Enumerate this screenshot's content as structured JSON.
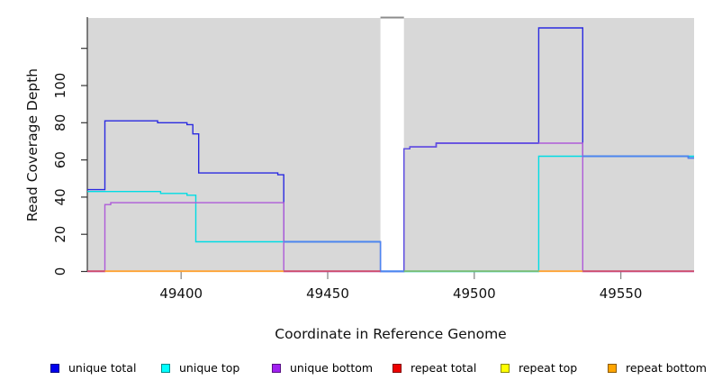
{
  "figure": {
    "bg": "#ffffff",
    "plot_bg": "#D8D8D8",
    "gap_bridge_color": "#8C8C8C"
  },
  "titles": {
    "x": "Coordinate in Reference Genome",
    "y": "Read Coverage Depth"
  },
  "chart_data": {
    "type": "line",
    "title": "",
    "xlabel": "Coordinate in Reference Genome",
    "ylabel": "Read Coverage Depth",
    "xlim": [
      49368,
      49575
    ],
    "ylim": [
      0,
      137
    ],
    "grid": false,
    "legend_position": "bottom",
    "panels_x": [
      [
        49368,
        49468
      ],
      [
        49476,
        49575
      ]
    ],
    "panel_gap_x": [
      49468,
      49476
    ],
    "x_ticks": [
      49400,
      49450,
      49500,
      49550
    ],
    "y_ticks": [
      {
        "v": 0,
        "label": "0"
      },
      {
        "v": 20,
        "label": "20"
      },
      {
        "v": 40,
        "label": "40"
      },
      {
        "v": 60,
        "label": "60"
      },
      {
        "v": 80,
        "label": "80"
      },
      {
        "v": 100,
        "label": "100"
      },
      {
        "v": 120,
        "label": ""
      }
    ],
    "series": [
      {
        "name": "unique top",
        "color": "#00DCE4",
        "points_segments": [
          [
            [
              49368,
              43
            ],
            [
              49393,
              42
            ],
            [
              49402,
              41
            ],
            [
              49405,
              16
            ],
            [
              49468,
              16
            ]
          ],
          [
            [
              49476,
              0
            ],
            [
              49522,
              62
            ],
            [
              49575,
              62
            ]
          ]
        ]
      },
      {
        "name": "unique total",
        "color": "#2A2AE0",
        "points_segments": [
          [
            [
              49368,
              44
            ],
            [
              49374,
              81
            ],
            [
              49392,
              80
            ],
            [
              49402,
              79
            ],
            [
              49404,
              74
            ],
            [
              49406,
              53
            ],
            [
              49433,
              52
            ],
            [
              49435,
              16
            ],
            [
              49468,
              0
            ],
            [
              49476,
              66
            ],
            [
              49478,
              67
            ],
            [
              49487,
              69
            ],
            [
              49522,
              131
            ],
            [
              49537,
              62
            ],
            [
              49573,
              61
            ],
            [
              49575,
              61
            ]
          ]
        ]
      },
      {
        "name": "unique bottom",
        "color": "#AE5BD8",
        "points_segments": [
          [
            [
              49368,
              0
            ],
            [
              49374,
              36
            ],
            [
              49376,
              37
            ],
            [
              49435,
              0
            ],
            [
              49468,
              0
            ]
          ],
          [
            [
              49476,
              0
            ],
            [
              49476,
              66
            ],
            [
              49478,
              67
            ],
            [
              49487,
              69
            ],
            [
              49537,
              0
            ],
            [
              49575,
              0
            ]
          ]
        ]
      },
      {
        "name": "repeat total",
        "color": "#EE0000",
        "render": false,
        "points_segments": [
          [
            [
              49368,
              0
            ],
            [
              49468,
              0
            ]
          ],
          [
            [
              49476,
              0
            ],
            [
              49575,
              0
            ]
          ]
        ]
      },
      {
        "name": "repeat top",
        "color": "#FFFF00",
        "render": false,
        "points_segments": [
          [
            [
              49368,
              0
            ],
            [
              49468,
              0
            ]
          ],
          [
            [
              49476,
              0
            ],
            [
              49575,
              0
            ]
          ]
        ]
      },
      {
        "name": "repeat bottom",
        "color": "#FFA500",
        "render": false,
        "points_segments": [
          [
            [
              49368,
              0
            ],
            [
              49468,
              0
            ]
          ],
          [
            [
              49476,
              0
            ],
            [
              49575,
              0
            ]
          ]
        ]
      }
    ],
    "overlap_overlays": [
      {
        "name": "total-bottom-overlap",
        "color": "#5B4FE2",
        "points": [
          [
            49476,
            0
          ],
          [
            49476,
            66
          ],
          [
            49478,
            67
          ],
          [
            49487,
            69
          ],
          [
            49522,
            69
          ]
        ]
      },
      {
        "name": "total-top-overlap-left",
        "color": "#4C86F0",
        "points": [
          [
            49435,
            16
          ],
          [
            49468,
            0
          ],
          [
            49476,
            0
          ]
        ]
      },
      {
        "name": "total-top-overlap-right",
        "color": "#4C86F0",
        "points": [
          [
            49537,
            62
          ],
          [
            49573,
            61
          ],
          [
            49575,
            61
          ]
        ]
      }
    ],
    "baseline_segments": [
      {
        "x0": 49368,
        "x1": 49374,
        "color": "#CE4A6E"
      },
      {
        "x0": 49374,
        "x1": 49435,
        "color": "#FFA333"
      },
      {
        "x0": 49435,
        "x1": 49468,
        "color": "#CE4A6E"
      },
      {
        "x0": 49468,
        "x1": 49476,
        "color": "#4C86F0"
      },
      {
        "x0": 49476,
        "x1": 49522,
        "color": "#74BE74"
      },
      {
        "x0": 49522,
        "x1": 49537,
        "color": "#FFA333"
      },
      {
        "x0": 49537,
        "x1": 49575,
        "color": "#CE4A6E"
      }
    ]
  },
  "legend": {
    "items": [
      {
        "label": "unique total",
        "color": "#0000EE"
      },
      {
        "label": "unique top",
        "color": "#00FFFF"
      },
      {
        "label": "unique bottom",
        "color": "#A020F0"
      },
      {
        "label": "repeat total",
        "color": "#EE0000"
      },
      {
        "label": "repeat top",
        "color": "#FFFF00"
      },
      {
        "label": "repeat bottom",
        "color": "#FFA500"
      }
    ]
  }
}
